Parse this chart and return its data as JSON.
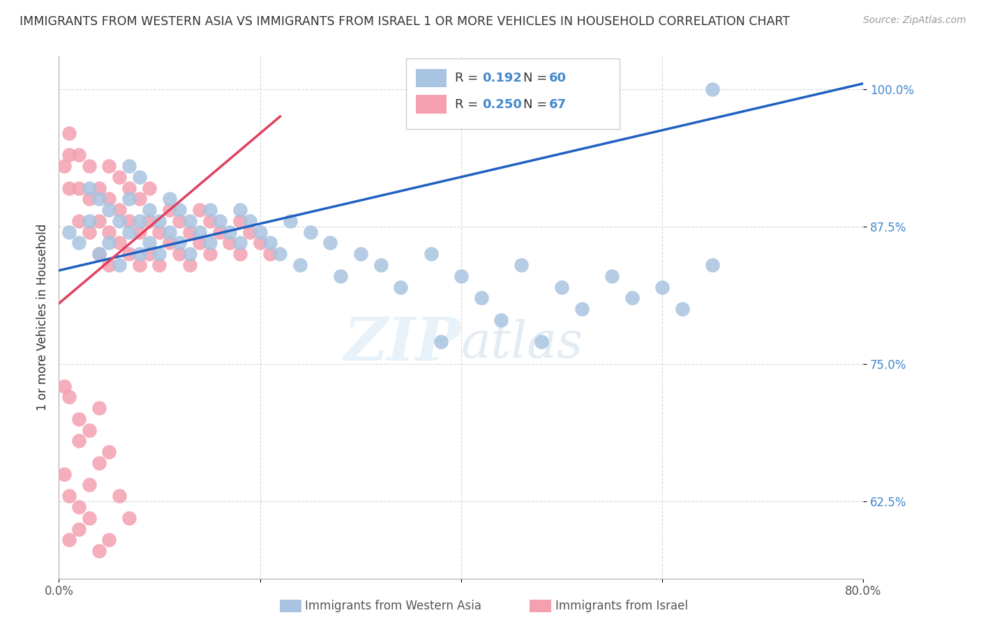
{
  "title": "IMMIGRANTS FROM WESTERN ASIA VS IMMIGRANTS FROM ISRAEL 1 OR MORE VEHICLES IN HOUSEHOLD CORRELATION CHART",
  "source": "Source: ZipAtlas.com",
  "ylabel": "1 or more Vehicles in Household",
  "xlim": [
    0.0,
    0.8
  ],
  "ylim": [
    0.555,
    1.03
  ],
  "R_blue": 0.192,
  "N_blue": 60,
  "R_pink": 0.25,
  "N_pink": 67,
  "legend_label_blue": "Immigrants from Western Asia",
  "legend_label_pink": "Immigrants from Israel",
  "blue_color": "#a8c4e0",
  "pink_color": "#f4a0b0",
  "blue_line_color": "#2060c0",
  "pink_line_color": "#e04060",
  "blue_trend_x0": 0.0,
  "blue_trend_y0": 0.835,
  "blue_trend_x1": 0.8,
  "blue_trend_y1": 1.005,
  "pink_trend_x0": 0.0,
  "pink_trend_y0": 0.805,
  "pink_trend_x1": 0.22,
  "pink_trend_y1": 0.975,
  "blue_x": [
    0.01,
    0.02,
    0.03,
    0.03,
    0.04,
    0.04,
    0.05,
    0.05,
    0.06,
    0.06,
    0.07,
    0.07,
    0.07,
    0.08,
    0.08,
    0.08,
    0.09,
    0.09,
    0.1,
    0.1,
    0.11,
    0.11,
    0.12,
    0.12,
    0.13,
    0.13,
    0.14,
    0.15,
    0.15,
    0.16,
    0.17,
    0.18,
    0.18,
    0.19,
    0.2,
    0.21,
    0.22,
    0.23,
    0.24,
    0.25,
    0.27,
    0.28,
    0.3,
    0.32,
    0.34,
    0.37,
    0.4,
    0.42,
    0.46,
    0.5,
    0.52,
    0.55,
    0.57,
    0.6,
    0.62,
    0.65,
    0.38,
    0.44,
    0.48,
    0.65
  ],
  "blue_y": [
    0.87,
    0.86,
    0.88,
    0.91,
    0.85,
    0.9,
    0.86,
    0.89,
    0.84,
    0.88,
    0.87,
    0.9,
    0.93,
    0.85,
    0.88,
    0.92,
    0.86,
    0.89,
    0.85,
    0.88,
    0.87,
    0.9,
    0.86,
    0.89,
    0.85,
    0.88,
    0.87,
    0.86,
    0.89,
    0.88,
    0.87,
    0.86,
    0.89,
    0.88,
    0.87,
    0.86,
    0.85,
    0.88,
    0.84,
    0.87,
    0.86,
    0.83,
    0.85,
    0.84,
    0.82,
    0.85,
    0.83,
    0.81,
    0.84,
    0.82,
    0.8,
    0.83,
    0.81,
    0.82,
    0.8,
    0.84,
    0.77,
    0.79,
    0.77,
    1.0
  ],
  "pink_x": [
    0.005,
    0.01,
    0.01,
    0.01,
    0.02,
    0.02,
    0.02,
    0.03,
    0.03,
    0.03,
    0.04,
    0.04,
    0.04,
    0.05,
    0.05,
    0.05,
    0.05,
    0.06,
    0.06,
    0.06,
    0.07,
    0.07,
    0.07,
    0.08,
    0.08,
    0.08,
    0.09,
    0.09,
    0.09,
    0.1,
    0.1,
    0.11,
    0.11,
    0.12,
    0.12,
    0.13,
    0.13,
    0.14,
    0.14,
    0.15,
    0.15,
    0.16,
    0.17,
    0.18,
    0.18,
    0.19,
    0.2,
    0.21,
    0.005,
    0.01,
    0.02,
    0.02,
    0.03,
    0.04,
    0.005,
    0.01,
    0.02,
    0.03,
    0.04,
    0.05,
    0.01,
    0.02,
    0.03,
    0.04,
    0.05,
    0.06,
    0.07
  ],
  "pink_y": [
    0.93,
    0.91,
    0.94,
    0.96,
    0.88,
    0.91,
    0.94,
    0.87,
    0.9,
    0.93,
    0.85,
    0.88,
    0.91,
    0.84,
    0.87,
    0.9,
    0.93,
    0.86,
    0.89,
    0.92,
    0.85,
    0.88,
    0.91,
    0.84,
    0.87,
    0.9,
    0.85,
    0.88,
    0.91,
    0.84,
    0.87,
    0.86,
    0.89,
    0.85,
    0.88,
    0.84,
    0.87,
    0.86,
    0.89,
    0.85,
    0.88,
    0.87,
    0.86,
    0.85,
    0.88,
    0.87,
    0.86,
    0.85,
    0.73,
    0.72,
    0.7,
    0.68,
    0.69,
    0.71,
    0.65,
    0.63,
    0.62,
    0.64,
    0.66,
    0.67,
    0.59,
    0.6,
    0.61,
    0.58,
    0.59,
    0.63,
    0.61
  ]
}
